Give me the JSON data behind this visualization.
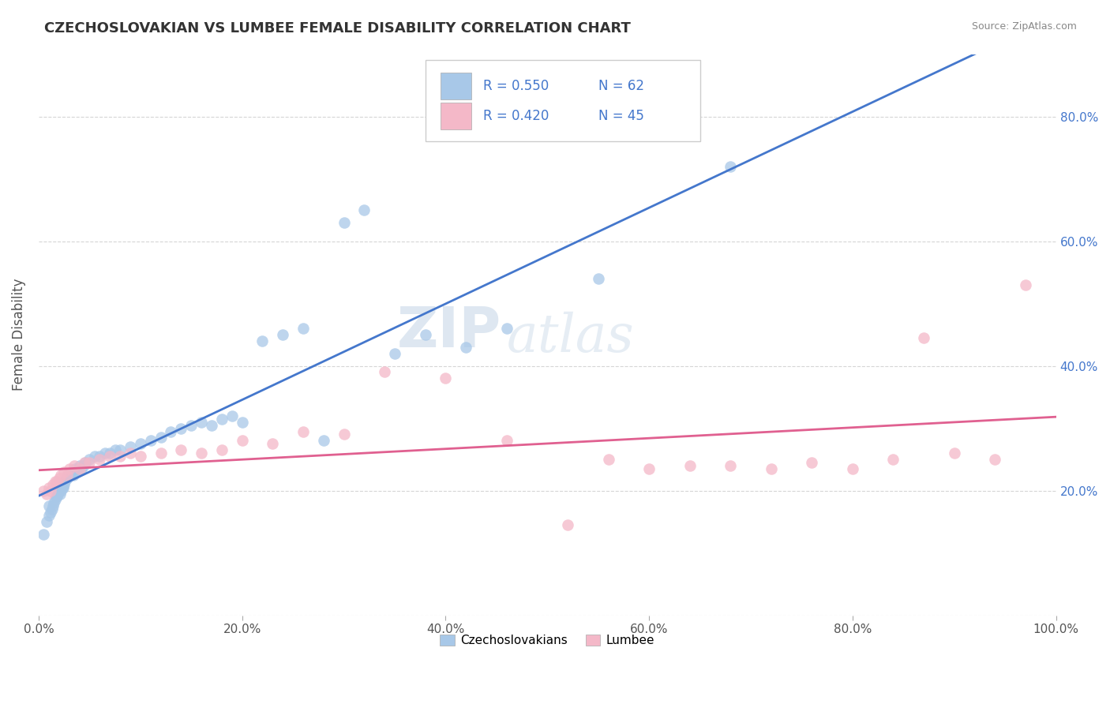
{
  "title": "CZECHOSLOVAKIAN VS LUMBEE FEMALE DISABILITY CORRELATION CHART",
  "source": "Source: ZipAtlas.com",
  "ylabel": "Female Disability",
  "xlim": [
    0,
    1.0
  ],
  "ylim": [
    0,
    0.9
  ],
  "xticks": [
    0.0,
    0.2,
    0.4,
    0.6,
    0.8,
    1.0
  ],
  "xtick_labels": [
    "0.0%",
    "20.0%",
    "40.0%",
    "60.0%",
    "80.0%",
    "100.0%"
  ],
  "yticks": [
    0.0,
    0.2,
    0.4,
    0.6,
    0.8
  ],
  "ytick_labels_left": [
    "",
    "",
    "",
    "",
    ""
  ],
  "ytick_labels_right": [
    "",
    "20.0%",
    "40.0%",
    "60.0%",
    "80.0%"
  ],
  "blue_R": 0.55,
  "blue_N": 62,
  "pink_R": 0.42,
  "pink_N": 45,
  "blue_color": "#a8c8e8",
  "pink_color": "#f4b8c8",
  "blue_line_color": "#4477cc",
  "pink_line_color": "#e06090",
  "watermark_zip": "ZIP",
  "watermark_atlas": "atlas",
  "blue_scatter_x": [
    0.005,
    0.008,
    0.01,
    0.01,
    0.012,
    0.013,
    0.014,
    0.015,
    0.016,
    0.017,
    0.018,
    0.019,
    0.02,
    0.021,
    0.022,
    0.023,
    0.024,
    0.025,
    0.026,
    0.027,
    0.028,
    0.029,
    0.03,
    0.032,
    0.034,
    0.036,
    0.038,
    0.04,
    0.042,
    0.044,
    0.046,
    0.05,
    0.055,
    0.06,
    0.065,
    0.07,
    0.075,
    0.08,
    0.09,
    0.1,
    0.11,
    0.12,
    0.13,
    0.14,
    0.15,
    0.16,
    0.17,
    0.18,
    0.19,
    0.2,
    0.22,
    0.24,
    0.26,
    0.28,
    0.3,
    0.32,
    0.35,
    0.38,
    0.42,
    0.46,
    0.55,
    0.68
  ],
  "blue_scatter_y": [
    0.13,
    0.15,
    0.16,
    0.175,
    0.165,
    0.17,
    0.175,
    0.18,
    0.185,
    0.19,
    0.19,
    0.195,
    0.2,
    0.195,
    0.2,
    0.205,
    0.205,
    0.21,
    0.215,
    0.22,
    0.22,
    0.225,
    0.225,
    0.23,
    0.225,
    0.235,
    0.23,
    0.24,
    0.235,
    0.24,
    0.245,
    0.25,
    0.255,
    0.255,
    0.26,
    0.26,
    0.265,
    0.265,
    0.27,
    0.275,
    0.28,
    0.285,
    0.295,
    0.3,
    0.305,
    0.31,
    0.305,
    0.315,
    0.32,
    0.31,
    0.44,
    0.45,
    0.46,
    0.28,
    0.63,
    0.65,
    0.42,
    0.45,
    0.43,
    0.46,
    0.54,
    0.72
  ],
  "pink_scatter_x": [
    0.005,
    0.008,
    0.01,
    0.012,
    0.014,
    0.016,
    0.018,
    0.02,
    0.022,
    0.025,
    0.028,
    0.03,
    0.035,
    0.04,
    0.045,
    0.05,
    0.06,
    0.07,
    0.08,
    0.09,
    0.1,
    0.12,
    0.14,
    0.16,
    0.18,
    0.2,
    0.23,
    0.26,
    0.3,
    0.34,
    0.4,
    0.46,
    0.52,
    0.56,
    0.6,
    0.64,
    0.68,
    0.72,
    0.76,
    0.8,
    0.84,
    0.87,
    0.9,
    0.94,
    0.97
  ],
  "pink_scatter_y": [
    0.2,
    0.195,
    0.205,
    0.2,
    0.21,
    0.215,
    0.215,
    0.22,
    0.225,
    0.23,
    0.225,
    0.235,
    0.24,
    0.235,
    0.245,
    0.245,
    0.25,
    0.255,
    0.255,
    0.26,
    0.255,
    0.26,
    0.265,
    0.26,
    0.265,
    0.28,
    0.275,
    0.295,
    0.29,
    0.39,
    0.38,
    0.28,
    0.145,
    0.25,
    0.235,
    0.24,
    0.24,
    0.235,
    0.245,
    0.235,
    0.25,
    0.445,
    0.26,
    0.25,
    0.53
  ],
  "legend_labels": [
    "Czechoslovakians",
    "Lumbee"
  ]
}
